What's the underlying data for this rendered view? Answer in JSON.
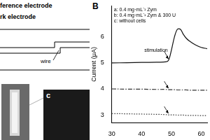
{
  "diagram": {
    "labels": [
      "ference electrode",
      "rk electrode",
      "wire"
    ]
  },
  "image_label": "c",
  "panel_label": "B",
  "chart_data": {
    "type": "line",
    "y_label": "Current (μA)",
    "x": [
      30,
      35,
      40,
      45,
      48,
      49,
      50,
      51,
      52,
      53,
      54,
      55,
      56,
      58,
      60,
      62
    ],
    "series": [
      {
        "name": "a: 0.4 mg·mL⁻¹ Zym",
        "color": "#111111",
        "line_style": "solid",
        "values": [
          5.0,
          5.01,
          5.02,
          5.03,
          5.04,
          5.1,
          5.5,
          6.0,
          6.3,
          6.3,
          6.1,
          5.95,
          5.85,
          5.7,
          5.6,
          5.55
        ]
      },
      {
        "name": "b: 0.4 mg·mL⁻¹ Zym & 300 U",
        "color": "#333333",
        "line_style": "dashdot",
        "values": [
          4.0,
          3.99,
          3.99,
          3.98,
          3.98,
          3.97,
          3.97,
          3.97,
          3.96,
          3.96,
          3.96,
          3.96,
          3.95,
          3.95,
          3.95,
          3.95
        ]
      },
      {
        "name": "c: without cells",
        "color": "#333333",
        "line_style": "dotted",
        "values": [
          3.05,
          3.04,
          3.03,
          3.02,
          3.01,
          3.0,
          3.0,
          3.0,
          2.99,
          2.99,
          2.99,
          2.98,
          2.98,
          2.98,
          2.97,
          2.97
        ]
      }
    ],
    "annotations": [
      {
        "text": "stimulation",
        "x": 49,
        "y": 5.4
      }
    ],
    "xlim": [
      30,
      62
    ],
    "xticks": [
      30,
      40,
      50,
      60
    ],
    "ylim": [
      2.7,
      7.2
    ],
    "yticks": [
      3,
      4,
      5,
      6
    ],
    "grid": false,
    "legend": "top left"
  }
}
